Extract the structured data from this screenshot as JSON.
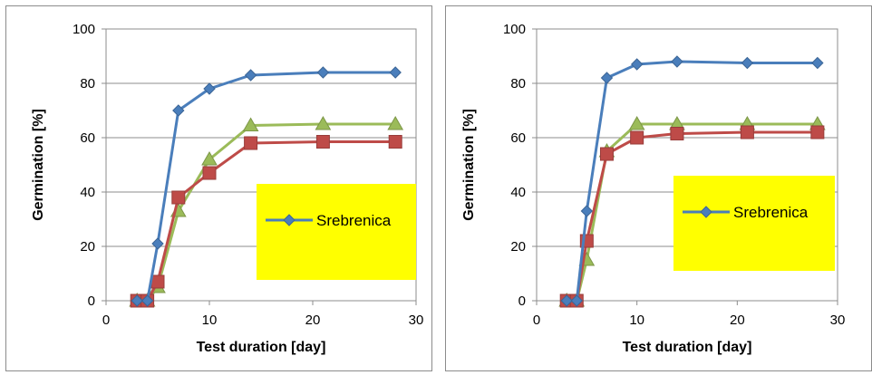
{
  "chart_data": [
    {
      "type": "line",
      "xlabel": "Test duration [day]",
      "ylabel": "Germination [%]",
      "xlim": [
        0,
        30
      ],
      "ylim": [
        0,
        100
      ],
      "xticks": [
        0,
        10,
        20,
        30
      ],
      "yticks": [
        0,
        20,
        40,
        60,
        80,
        100
      ],
      "grid": "horizontal",
      "legend_position": "center-right",
      "series": [
        {
          "name": "Srebrenica",
          "color": "#4a7ebb",
          "marker": "diamond",
          "x": [
            3,
            4,
            5,
            7,
            10,
            14,
            21,
            28
          ],
          "y": [
            0,
            0,
            21,
            70,
            78,
            83,
            84,
            84
          ]
        },
        {
          "name": "",
          "color": "#be4b48",
          "marker": "square",
          "x": [
            3,
            4,
            5,
            7,
            10,
            14,
            21,
            28
          ],
          "y": [
            0,
            0,
            7,
            38,
            47,
            58,
            58.5,
            58.5
          ]
        },
        {
          "name": "",
          "color": "#9bbb59",
          "marker": "triangle",
          "x": [
            3,
            4,
            5,
            7,
            10,
            14,
            21,
            28
          ],
          "y": [
            0,
            0,
            5,
            33,
            52,
            64.5,
            65,
            65
          ]
        }
      ]
    },
    {
      "type": "line",
      "xlabel": "Test duration [day]",
      "ylabel": "Germination [%]",
      "xlim": [
        0,
        30
      ],
      "ylim": [
        0,
        100
      ],
      "xticks": [
        0,
        10,
        20,
        30
      ],
      "yticks": [
        0,
        20,
        40,
        60,
        80,
        100
      ],
      "grid": "horizontal",
      "legend_position": "center-right",
      "series": [
        {
          "name": "Srebrenica",
          "color": "#4a7ebb",
          "marker": "diamond",
          "x": [
            3,
            4,
            5,
            7,
            10,
            14,
            21,
            28
          ],
          "y": [
            0,
            0,
            33,
            82,
            87,
            88,
            87.5,
            87.5
          ]
        },
        {
          "name": "",
          "color": "#be4b48",
          "marker": "square",
          "x": [
            3,
            4,
            5,
            7,
            10,
            14,
            21,
            28
          ],
          "y": [
            0,
            0,
            22,
            54,
            60,
            61.5,
            62,
            62
          ]
        },
        {
          "name": "",
          "color": "#9bbb59",
          "marker": "triangle",
          "x": [
            3,
            4,
            5,
            7,
            10,
            14,
            21,
            28
          ],
          "y": [
            0,
            0,
            15,
            55,
            65,
            65,
            65,
            65
          ]
        }
      ]
    }
  ],
  "legend_box_color": "#ffff00"
}
